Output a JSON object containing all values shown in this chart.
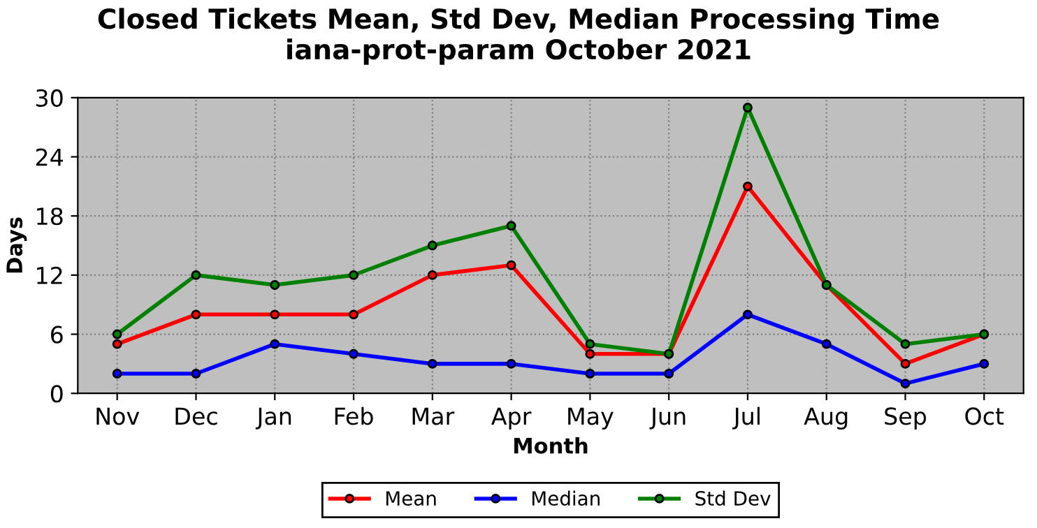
{
  "chart_data": {
    "type": "line",
    "title": "Closed Tickets Mean, Std Dev, Median Processing Time\niana-prot-param October 2021",
    "xlabel": "Month",
    "ylabel": "Days",
    "categories": [
      "Nov",
      "Dec",
      "Jan",
      "Feb",
      "Mar",
      "Apr",
      "May",
      "Jun",
      "Jul",
      "Aug",
      "Sep",
      "Oct"
    ],
    "series": [
      {
        "name": "Mean",
        "color": "#ff0000",
        "values": [
          5,
          8,
          8,
          8,
          12,
          13,
          4,
          4,
          21,
          11,
          3,
          6
        ]
      },
      {
        "name": "Median",
        "color": "#0000ff",
        "values": [
          2,
          2,
          5,
          4,
          3,
          3,
          2,
          2,
          8,
          5,
          1,
          3
        ]
      },
      {
        "name": "Std Dev",
        "color": "#008000",
        "values": [
          6,
          12,
          11,
          12,
          15,
          17,
          5,
          4,
          29,
          11,
          5,
          6
        ]
      }
    ],
    "ylim": [
      0,
      30
    ],
    "yticks": [
      0,
      6,
      12,
      18,
      24,
      30
    ],
    "grid": true,
    "legend": "bottom",
    "marker": "circle",
    "line_style": "solid"
  }
}
